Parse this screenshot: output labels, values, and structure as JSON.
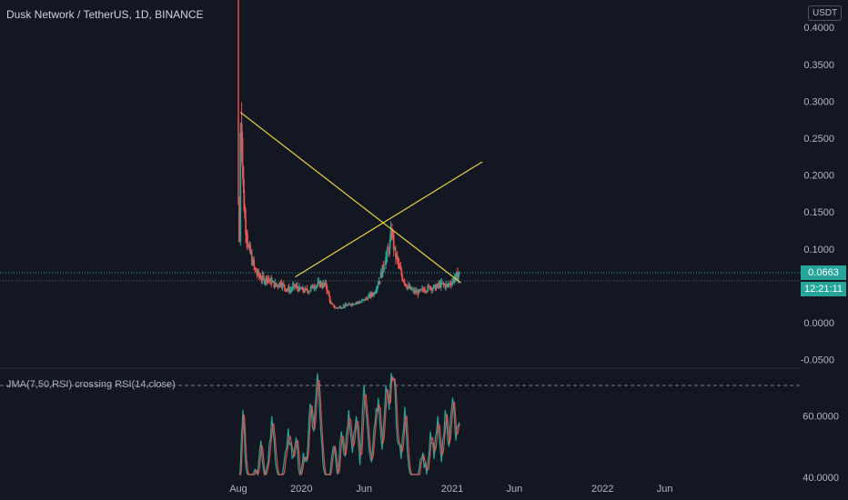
{
  "header": {
    "symbol_title": "Dusk Network / TetherUS, 1D, BINANCE",
    "currency": "USDT"
  },
  "price_pane": {
    "last_price": "0.0663",
    "countdown": "12:21:11"
  },
  "indicator": {
    "label": "JMA(7,50,RSI) crossing RSI(14,close)"
  },
  "colors": {
    "background": "#131722",
    "up": "#26a69a",
    "down": "#ef5350",
    "trendline": "#e8d33f",
    "axis_text": "#b2b5be",
    "jma_line": "#ef5350",
    "rsi_line": "#26a69a",
    "dashed_level": "#787b86"
  },
  "chart_data": [
    {
      "type": "candlestick",
      "title": "Dusk Network / TetherUS, 1D, BINANCE",
      "y_ticks": [
        "0.4000",
        "0.3500",
        "0.3000",
        "0.2500",
        "0.2000",
        "0.1500",
        "0.1000",
        "0.0500",
        "0.0000",
        "-0.0500"
      ],
      "ylim": [
        -0.05,
        0.41
      ],
      "x_ticks": [
        "Aug",
        "2020",
        "Jun",
        "2021",
        "Jun",
        "2022",
        "Jun"
      ],
      "xlim": [
        "2019-08-01",
        "2022-08-01"
      ],
      "grid": false,
      "last_price": 0.0663,
      "close_series": [
        [
          "2019-08-01",
          0.16
        ],
        [
          "2019-08-03",
          0.11
        ],
        [
          "2019-08-06",
          0.27
        ],
        [
          "2019-08-09",
          0.25
        ],
        [
          "2019-08-13",
          0.18
        ],
        [
          "2019-08-17",
          0.14
        ],
        [
          "2019-08-21",
          0.12
        ],
        [
          "2019-08-26",
          0.1
        ],
        [
          "2019-09-01",
          0.09
        ],
        [
          "2019-09-08",
          0.075
        ],
        [
          "2019-09-15",
          0.066
        ],
        [
          "2019-09-22",
          0.062
        ],
        [
          "2019-10-01",
          0.058
        ],
        [
          "2019-10-10",
          0.06
        ],
        [
          "2019-10-20",
          0.055
        ],
        [
          "2019-11-01",
          0.05
        ],
        [
          "2019-11-12",
          0.054
        ],
        [
          "2019-11-24",
          0.046
        ],
        [
          "2019-12-05",
          0.044
        ],
        [
          "2019-12-16",
          0.049
        ],
        [
          "2019-12-27",
          0.046
        ],
        [
          "2020-01-08",
          0.043
        ],
        [
          "2020-01-20",
          0.044
        ],
        [
          "2020-02-01",
          0.05
        ],
        [
          "2020-02-15",
          0.052
        ],
        [
          "2020-03-01",
          0.05
        ],
        [
          "2020-03-13",
          0.025
        ],
        [
          "2020-03-25",
          0.02
        ],
        [
          "2020-04-10",
          0.022
        ],
        [
          "2020-04-25",
          0.024
        ],
        [
          "2020-05-10",
          0.027
        ],
        [
          "2020-05-25",
          0.028
        ],
        [
          "2020-06-10",
          0.034
        ],
        [
          "2020-06-25",
          0.04
        ],
        [
          "2020-07-10",
          0.06
        ],
        [
          "2020-07-20",
          0.08
        ],
        [
          "2020-08-01",
          0.1
        ],
        [
          "2020-08-08",
          0.122
        ],
        [
          "2020-08-15",
          0.095
        ],
        [
          "2020-08-25",
          0.075
        ],
        [
          "2020-09-05",
          0.058
        ],
        [
          "2020-09-15",
          0.048
        ],
        [
          "2020-09-28",
          0.043
        ],
        [
          "2020-10-10",
          0.04
        ],
        [
          "2020-10-25",
          0.045
        ],
        [
          "2020-11-08",
          0.048
        ],
        [
          "2020-11-22",
          0.047
        ],
        [
          "2020-12-05",
          0.052
        ],
        [
          "2020-12-20",
          0.05
        ],
        [
          "2021-01-01",
          0.056
        ],
        [
          "2021-01-10",
          0.062
        ],
        [
          "2021-01-18",
          0.0663
        ]
      ],
      "trendlines": [
        {
          "from": [
            "2019-08-06",
            0.285
          ],
          "to": [
            "2021-01-22",
            0.054
          ]
        },
        {
          "from": [
            "2019-12-17",
            0.062
          ],
          "to": [
            "2021-03-15",
            0.218
          ]
        }
      ]
    },
    {
      "type": "line",
      "title": "JMA(7,50,RSI) crossing RSI(14,close)",
      "y_ticks": [
        "60.0000",
        "40.0000"
      ],
      "ylim": [
        29,
        75
      ],
      "levels": [
        70,
        30
      ],
      "series": [
        {
          "x": [
            "2019-08-03",
            "2019-08-08",
            "2019-08-12",
            "2019-08-17",
            "2019-08-24",
            "2019-08-31",
            "2019-09-08",
            "2019-09-16",
            "2019-09-25",
            "2019-10-03",
            "2019-10-12",
            "2019-10-21",
            "2019-10-30",
            "2019-11-09",
            "2019-11-19",
            "2019-11-30",
            "2019-12-10",
            "2019-12-19",
            "2019-12-28",
            "2020-01-06",
            "2020-01-14",
            "2020-01-22",
            "2020-01-31",
            "2020-02-09",
            "2020-02-17",
            "2020-02-25",
            "2020-03-05",
            "2020-03-13",
            "2020-03-21",
            "2020-03-29",
            "2020-04-07",
            "2020-04-16",
            "2020-04-25",
            "2020-05-04",
            "2020-05-13",
            "2020-05-22",
            "2020-06-01",
            "2020-06-10",
            "2020-06-19",
            "2020-06-28",
            "2020-07-06",
            "2020-07-15",
            "2020-07-24",
            "2020-08-01",
            "2020-08-06",
            "2020-08-13",
            "2020-08-21",
            "2020-08-30",
            "2020-09-08",
            "2020-09-17",
            "2020-09-25",
            "2020-10-04",
            "2020-10-13",
            "2020-10-22",
            "2020-10-31",
            "2020-11-09",
            "2020-11-18",
            "2020-11-27",
            "2020-12-06",
            "2020-12-15",
            "2020-12-24",
            "2021-01-02",
            "2021-01-10",
            "2021-01-18"
          ],
          "values": [
            32,
            52,
            62,
            48,
            38,
            35,
            42,
            40,
            52,
            36,
            45,
            60,
            45,
            36,
            44,
            56,
            46,
            53,
            40,
            48,
            45,
            64,
            55,
            74,
            55,
            42,
            32,
            45,
            50,
            40,
            55,
            47,
            62,
            48,
            60,
            44,
            70,
            55,
            45,
            58,
            66,
            49,
            70,
            62,
            74,
            72,
            52,
            46,
            63,
            44,
            38,
            35,
            43,
            48,
            40,
            55,
            46,
            60,
            45,
            62,
            50,
            66,
            52,
            58
          ]
        }
      ]
    }
  ]
}
